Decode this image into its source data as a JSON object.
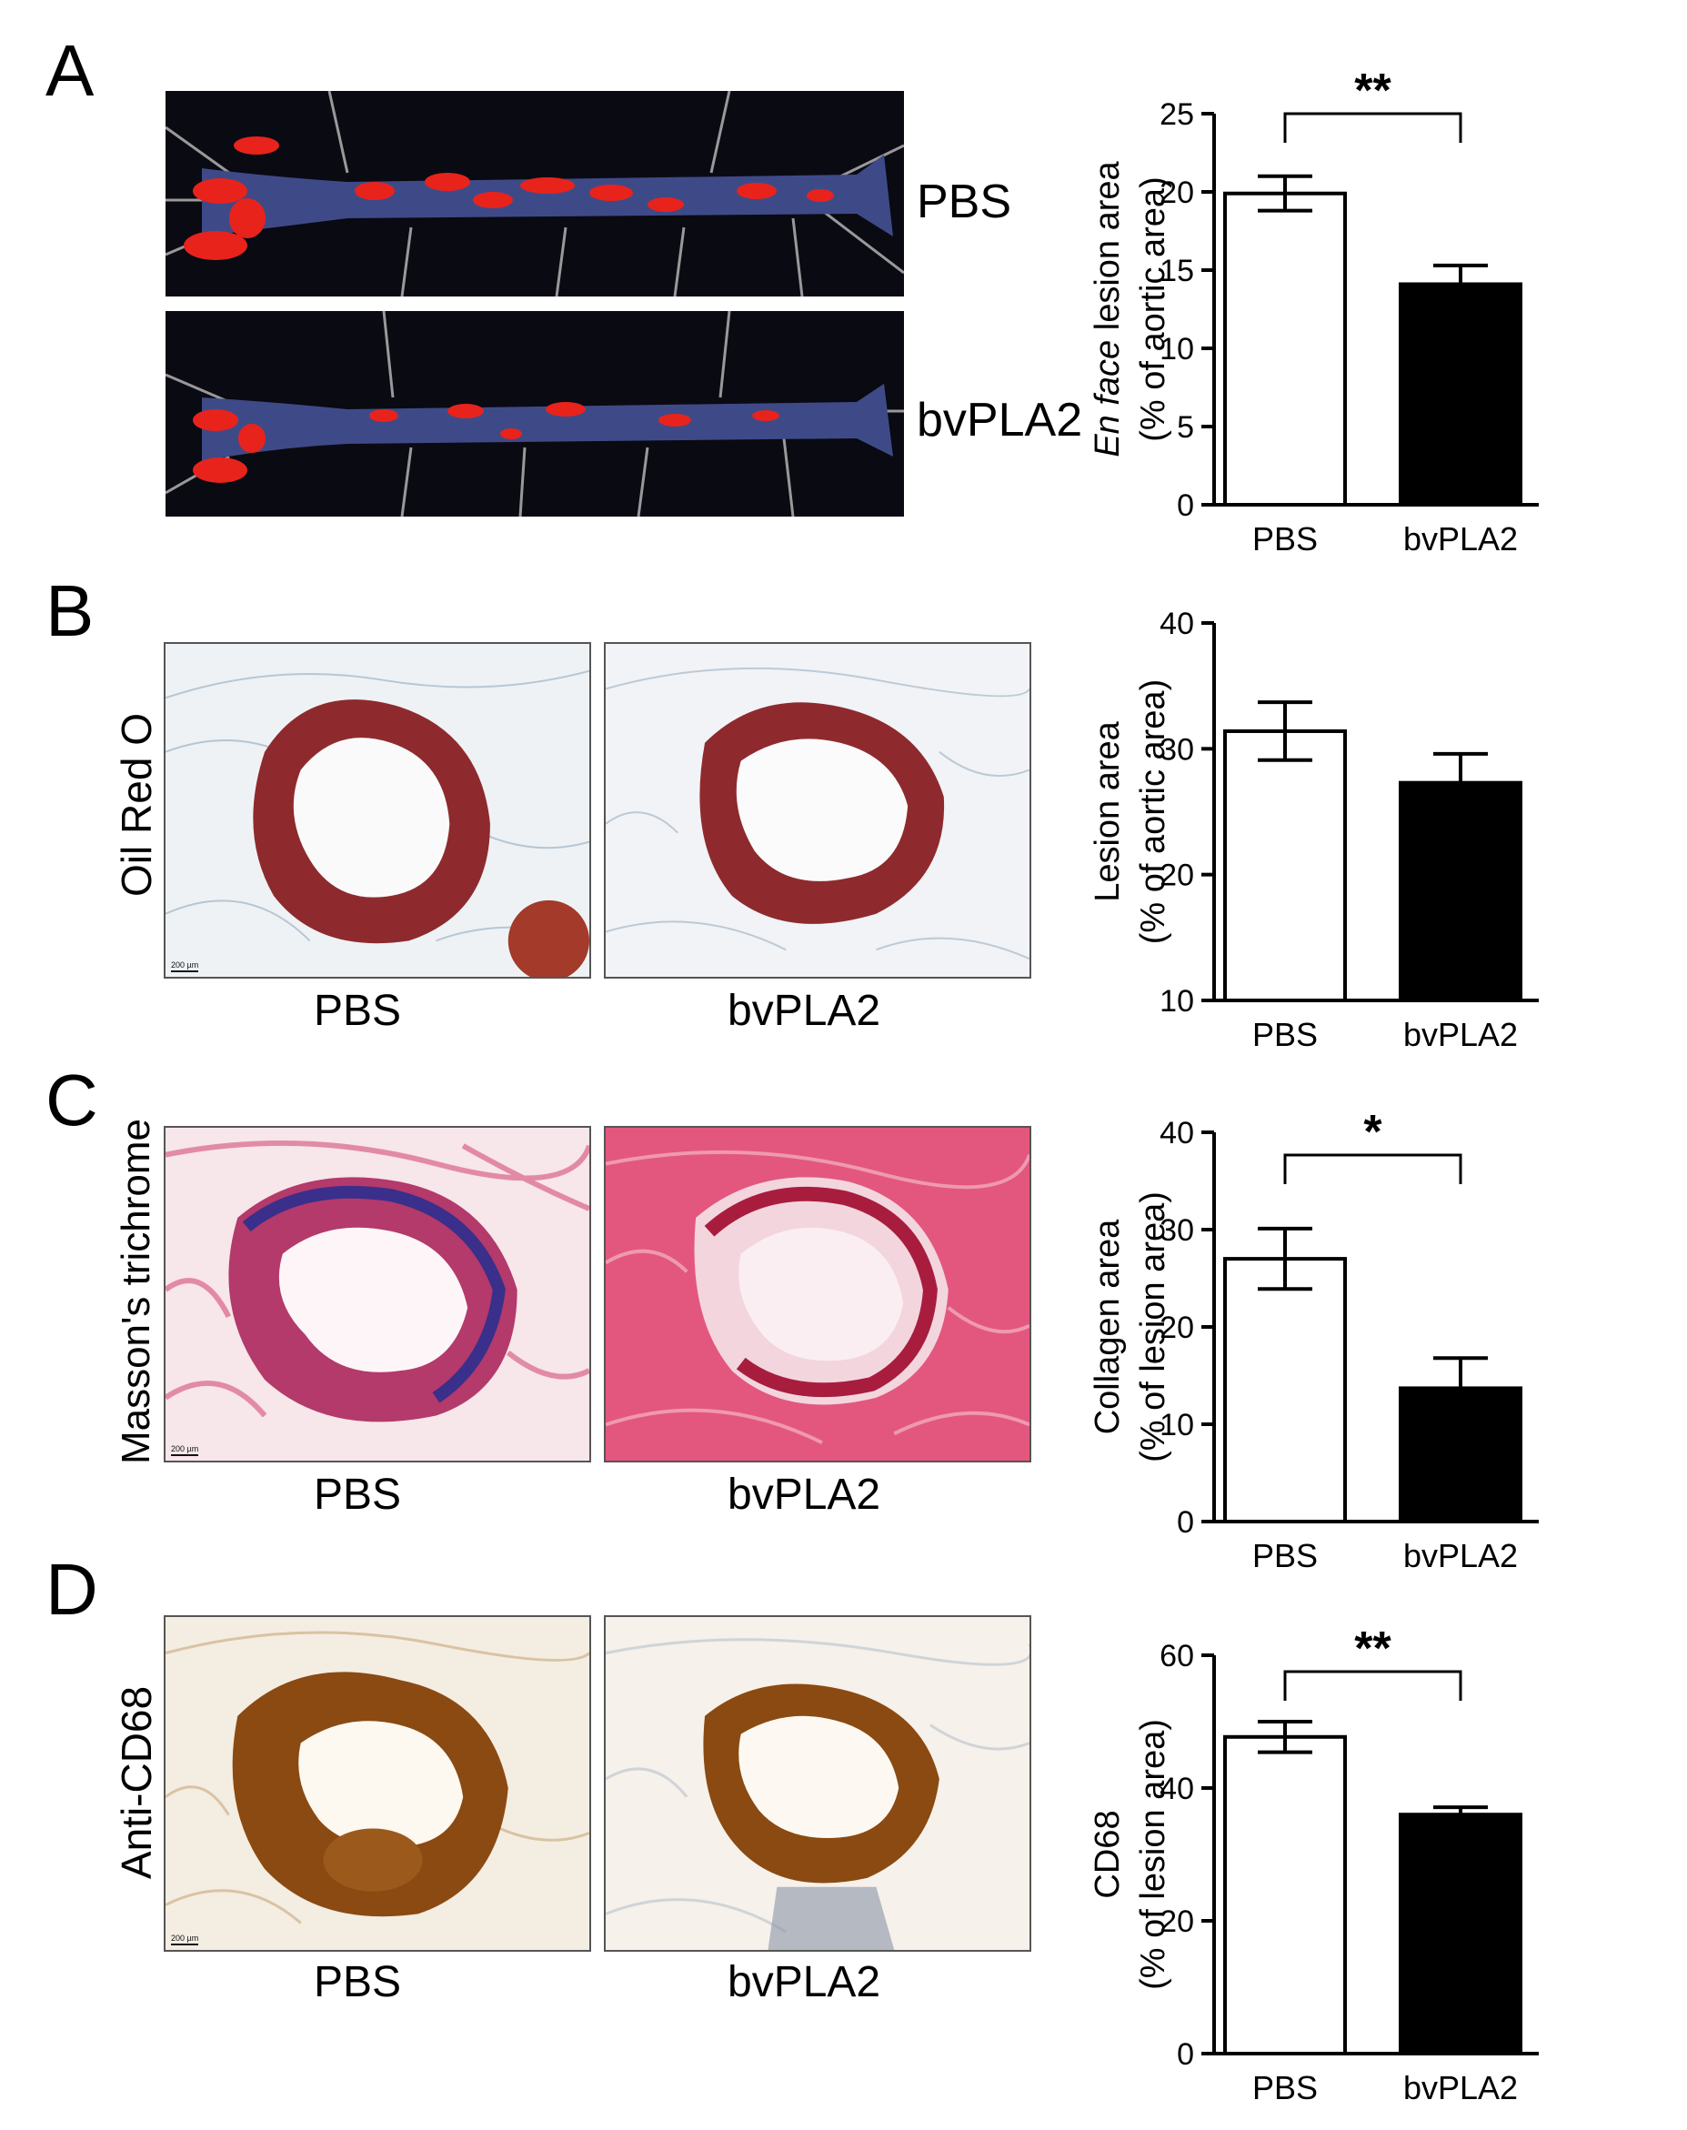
{
  "panels": {
    "A": {
      "letter": "A",
      "photo_labels": [
        "PBS",
        "bvPLA2"
      ]
    },
    "B": {
      "letter": "B",
      "stain": "Oil Red O",
      "image_labels": [
        "PBS",
        "bvPLA2"
      ],
      "scale": "200 µm"
    },
    "C": {
      "letter": "C",
      "stain": "Masson's trichrome",
      "image_labels": [
        "PBS",
        "bvPLA2"
      ],
      "scale": "200 µm"
    },
    "D": {
      "letter": "D",
      "stain": "Anti-CD68",
      "image_labels": [
        "PBS",
        "bvPLA2"
      ],
      "scale": "200 µm"
    }
  },
  "colors": {
    "pbs_bar": "#ffffff",
    "bvpla2_bar": "#000000",
    "aorta_lesion": "#e8231c",
    "aorta_tissue": "#3e4a88",
    "oil_red": "#8e2a2e",
    "trichrome_pink": "#d2406e",
    "trichrome_blue": "#3a2f8a",
    "cd68_brown": "#8a4a12"
  },
  "chart_data": [
    {
      "type": "bar",
      "panel": "A",
      "categories": [
        "PBS",
        "bvPLA2"
      ],
      "values": [
        19.9,
        14.1
      ],
      "errors": [
        1.1,
        1.2
      ],
      "bar_colors": [
        "#ffffff",
        "#000000"
      ],
      "ylabel_italic": "En face",
      "ylabel_rest": " lesion area",
      "ylabel_line2": "(% of aortic area)",
      "ylim": [
        0,
        25
      ],
      "yticks": [
        0,
        5,
        10,
        15,
        20,
        25
      ],
      "significance": "**"
    },
    {
      "type": "bar",
      "panel": "B",
      "categories": [
        "PBS",
        "bvPLA2"
      ],
      "values": [
        31.4,
        27.3
      ],
      "errors": [
        2.3,
        2.3
      ],
      "bar_colors": [
        "#ffffff",
        "#000000"
      ],
      "ylabel_italic": "",
      "ylabel_rest": "Lesion area",
      "ylabel_line2": "(% of aortic area)",
      "ylim": [
        10,
        40
      ],
      "yticks": [
        10,
        20,
        30,
        40
      ],
      "significance": ""
    },
    {
      "type": "bar",
      "panel": "C",
      "categories": [
        "PBS",
        "bvPLA2"
      ],
      "values": [
        27.0,
        13.7
      ],
      "errors": [
        3.1,
        3.1
      ],
      "bar_colors": [
        "#ffffff",
        "#000000"
      ],
      "ylabel_italic": "",
      "ylabel_rest": "Collagen area",
      "ylabel_line2": "(% of lesion area)",
      "ylim": [
        0,
        40
      ],
      "yticks": [
        0,
        10,
        20,
        30,
        40
      ],
      "significance": "*"
    },
    {
      "type": "bar",
      "panel": "D",
      "categories": [
        "PBS",
        "bvPLA2"
      ],
      "values": [
        47.7,
        36.0
      ],
      "errors": [
        2.3,
        1.1
      ],
      "bar_colors": [
        "#ffffff",
        "#000000"
      ],
      "ylabel_italic": "",
      "ylabel_rest": "CD68",
      "ylabel_line2": "(% of lesion area)",
      "ylim": [
        0,
        60
      ],
      "yticks": [
        0,
        20,
        40,
        60
      ],
      "significance": "**"
    }
  ]
}
